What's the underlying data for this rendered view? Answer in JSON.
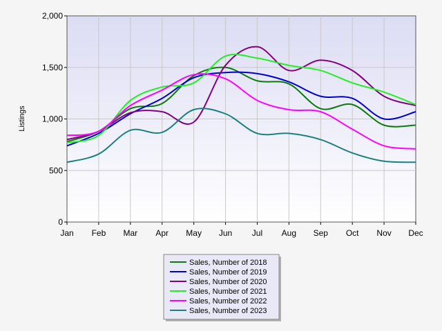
{
  "chart_data": {
    "type": "line",
    "title": "",
    "xlabel": "",
    "ylabel": "Listings",
    "categories": [
      "Jan",
      "Feb",
      "Mar",
      "Apr",
      "May",
      "Jun",
      "Jul",
      "Aug",
      "Sep",
      "Oct",
      "Nov",
      "Dec"
    ],
    "y_tick_labels": [
      "0",
      "500",
      "1,000",
      "1,500",
      "2,000"
    ],
    "y_ticks": [
      0,
      500,
      1000,
      1500,
      2000
    ],
    "ylim": [
      0,
      2000
    ],
    "grid": true,
    "legend_position": "bottom-center",
    "series": [
      {
        "name": "Sales, Number of 2018",
        "color": "#0a7a0a",
        "values": [
          780,
          880,
          1100,
          1150,
          1420,
          1500,
          1370,
          1340,
          1100,
          1140,
          940,
          940
        ]
      },
      {
        "name": "Sales, Number of 2019",
        "color": "#0000cc",
        "values": [
          740,
          860,
          1050,
          1200,
          1400,
          1450,
          1440,
          1360,
          1220,
          1200,
          1000,
          1070
        ]
      },
      {
        "name": "Sales, Number of 2020",
        "color": "#800080",
        "values": [
          800,
          880,
          1060,
          1070,
          970,
          1520,
          1700,
          1470,
          1570,
          1470,
          1220,
          1130
        ]
      },
      {
        "name": "Sales, Number of 2021",
        "color": "#22ee22",
        "values": [
          770,
          840,
          1180,
          1310,
          1350,
          1610,
          1590,
          1520,
          1470,
          1350,
          1260,
          1140
        ]
      },
      {
        "name": "Sales, Number of 2022",
        "color": "#ff00ff",
        "values": [
          840,
          880,
          1130,
          1280,
          1430,
          1390,
          1180,
          1090,
          1070,
          900,
          740,
          710
        ]
      },
      {
        "name": "Sales, Number of 2023",
        "color": "#1a7f7f",
        "values": [
          580,
          660,
          890,
          870,
          1090,
          1050,
          860,
          860,
          800,
          670,
          590,
          580
        ]
      }
    ]
  }
}
